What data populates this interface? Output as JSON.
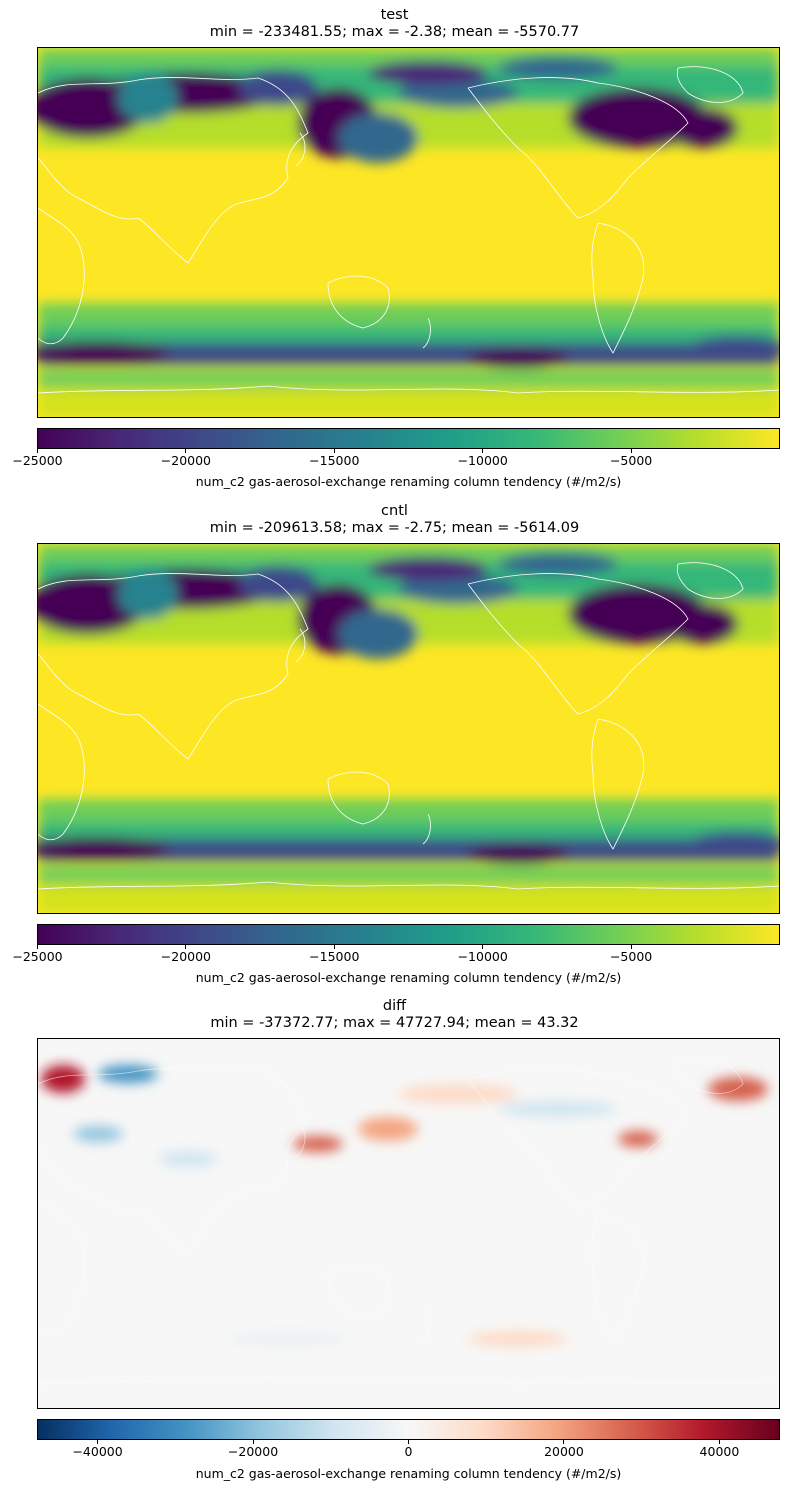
{
  "chart_data": [
    {
      "type": "heatmap",
      "title": "test",
      "subtitle": "min = -233481.55; max = -2.38; mean = -5570.77",
      "colormap": "viridis",
      "vmin": -25000,
      "vmax": 0,
      "colorbar_ticks": [
        "−25000",
        "−20000",
        "−15000",
        "−10000",
        "−5000"
      ],
      "colorbar_tick_values": [
        -25000,
        -20000,
        -15000,
        -10000,
        -5000
      ],
      "colorbar_label": "num_c2 gas-aerosol-exchange renaming column tendency (#/m2/s)",
      "stats": {
        "min": -233481.55,
        "max": -2.38,
        "mean": -5570.77
      }
    },
    {
      "type": "heatmap",
      "title": "cntl",
      "subtitle": "min = -209613.58; max = -2.75; mean = -5614.09",
      "colormap": "viridis",
      "vmin": -25000,
      "vmax": 0,
      "colorbar_ticks": [
        "−25000",
        "−20000",
        "−15000",
        "−10000",
        "−5000"
      ],
      "colorbar_tick_values": [
        -25000,
        -20000,
        -15000,
        -10000,
        -5000
      ],
      "colorbar_label": "num_c2 gas-aerosol-exchange renaming column tendency (#/m2/s)",
      "stats": {
        "min": -209613.58,
        "max": -2.75,
        "mean": -5614.09
      }
    },
    {
      "type": "heatmap",
      "title": "diff",
      "subtitle": "min = -37372.77; max = 47727.94; mean = 43.32",
      "colormap": "RdBu_r",
      "vmin": -47727.94,
      "vmax": 47727.94,
      "colorbar_ticks": [
        "−40000",
        "−20000",
        "0",
        "20000",
        "40000"
      ],
      "colorbar_tick_values": [
        -40000,
        -20000,
        0,
        20000,
        40000
      ],
      "colorbar_label": "num_c2 gas-aerosol-exchange renaming column tendency (#/m2/s)",
      "stats": {
        "min": -37372.77,
        "max": 47727.94,
        "mean": 43.32
      }
    }
  ],
  "colors": {
    "viridis_low": "#440154",
    "viridis_mid": "#21918c",
    "viridis_high": "#fde725",
    "rdbu_low": "#053061",
    "rdbu_mid": "#f7f7f7",
    "rdbu_high": "#67001f",
    "coastline": "#ffffff"
  }
}
